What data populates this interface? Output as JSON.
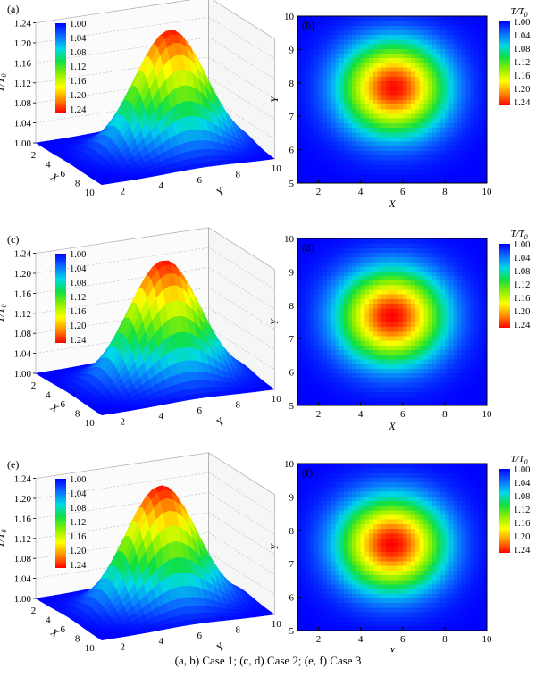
{
  "caption": "(a, b) Case 1; (c, d) Case 2; (e, f) Case 3",
  "colors": {
    "ramp": [
      "#0000ff",
      "#0a6cff",
      "#00d8e8",
      "#10e040",
      "#90f000",
      "#ffff00",
      "#ff8c00",
      "#ff0000"
    ]
  },
  "chart_data": [
    {
      "panel": "(a)",
      "type": "surface3d",
      "case": "Case 1",
      "zlabel": "T/T0",
      "xlabel": "X",
      "ylabel": "Y",
      "x_ticks": [
        "2",
        "4",
        "6",
        "8",
        "10"
      ],
      "y_ticks": [
        "2",
        "4",
        "6",
        "8",
        "10"
      ],
      "z_ticks": [
        "1.00",
        "1.04",
        "1.08",
        "1.12",
        "1.16",
        "1.20",
        "1.24"
      ],
      "zlim": [
        1.0,
        1.24
      ],
      "peak": {
        "x": 5.5,
        "y": 8.0,
        "value": 1.24
      },
      "legend_values": [
        "1.00",
        "1.04",
        "1.08",
        "1.12",
        "1.16",
        "1.20",
        "1.24"
      ]
    },
    {
      "panel": "(b)",
      "type": "heatmap",
      "case": "Case 1",
      "xlabel": "X",
      "ylabel": "Y",
      "x_ticks": [
        "2",
        "4",
        "6",
        "8",
        "10"
      ],
      "y_ticks": [
        "5",
        "6",
        "7",
        "8",
        "9",
        "10"
      ],
      "xlim": [
        1,
        10
      ],
      "ylim": [
        5,
        10
      ],
      "peak": {
        "x": 5.6,
        "y": 7.9,
        "value": 1.24
      },
      "legend_title": "T/T0",
      "legend_values": [
        "1.00",
        "1.04",
        "1.08",
        "1.12",
        "1.16",
        "1.20",
        "1.24"
      ]
    },
    {
      "panel": "(c)",
      "type": "surface3d",
      "case": "Case 2",
      "zlabel": "T/T0",
      "xlabel": "X",
      "ylabel": "Y",
      "x_ticks": [
        "2",
        "4",
        "6",
        "8",
        "10"
      ],
      "y_ticks": [
        "2",
        "4",
        "6",
        "8",
        "10"
      ],
      "z_ticks": [
        "1.00",
        "1.04",
        "1.08",
        "1.12",
        "1.16",
        "1.20",
        "1.24"
      ],
      "zlim": [
        1.0,
        1.24
      ],
      "peak": {
        "x": 5.5,
        "y": 7.8,
        "value": 1.24
      },
      "legend_values": [
        "1.00",
        "1.04",
        "1.08",
        "1.12",
        "1.16",
        "1.20",
        "1.24"
      ]
    },
    {
      "panel": "(d)",
      "type": "heatmap",
      "case": "Case 2",
      "xlabel": "X",
      "ylabel": "Y",
      "x_ticks": [
        "2",
        "4",
        "6",
        "8",
        "10"
      ],
      "y_ticks": [
        "5",
        "6",
        "7",
        "8",
        "9",
        "10"
      ],
      "xlim": [
        1,
        10
      ],
      "ylim": [
        5,
        10
      ],
      "peak": {
        "x": 5.5,
        "y": 7.7,
        "value": 1.24
      },
      "legend_title": "T/T0",
      "legend_values": [
        "1.00",
        "1.04",
        "1.08",
        "1.12",
        "1.16",
        "1.20",
        "1.24"
      ]
    },
    {
      "panel": "(e)",
      "type": "surface3d",
      "case": "Case 3",
      "zlabel": "T/T0",
      "xlabel": "X",
      "ylabel": "Y",
      "x_ticks": [
        "2",
        "4",
        "6",
        "8",
        "10"
      ],
      "y_ticks": [
        "2",
        "4",
        "6",
        "8",
        "10"
      ],
      "z_ticks": [
        "1.00",
        "1.04",
        "1.08",
        "1.12",
        "1.16",
        "1.20",
        "1.24"
      ],
      "zlim": [
        1.0,
        1.24
      ],
      "peak": {
        "x": 5.5,
        "y": 7.7,
        "value": 1.24
      },
      "legend_values": [
        "1.00",
        "1.04",
        "1.08",
        "1.12",
        "1.16",
        "1.20",
        "1.24"
      ]
    },
    {
      "panel": "(f)",
      "type": "heatmap",
      "case": "Case 3",
      "xlabel": "X",
      "ylabel": "Y",
      "x_ticks": [
        "2",
        "4",
        "6",
        "8",
        "10"
      ],
      "y_ticks": [
        "5",
        "6",
        "7",
        "8",
        "9",
        "10"
      ],
      "xlim": [
        1,
        10
      ],
      "ylim": [
        5,
        10
      ],
      "peak": {
        "x": 5.5,
        "y": 7.6,
        "value": 1.24
      },
      "legend_title": "T/T0",
      "legend_values": [
        "1.00",
        "1.04",
        "1.08",
        "1.12",
        "1.16",
        "1.20",
        "1.24"
      ]
    }
  ]
}
